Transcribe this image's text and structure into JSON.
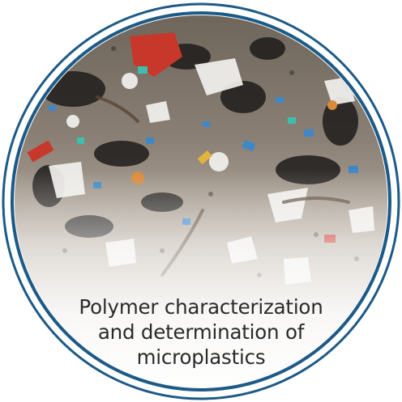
{
  "caption": {
    "line1": "Polymer characterization",
    "line2": "and determination of",
    "line3": "microplastics"
  },
  "colors": {
    "ring": "#1d5a86",
    "text": "#2a2a2a",
    "sand": "#d9d0c3",
    "fade": "#ffffff"
  },
  "icons": {
    "badge": "circular-photo-badge"
  }
}
